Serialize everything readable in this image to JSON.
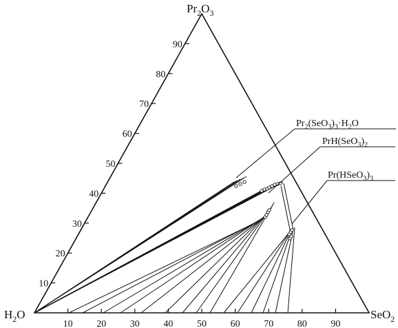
{
  "vertices": {
    "top": {
      "base": "Pr",
      "sub1": "2",
      "mid": "O",
      "sub2": "3"
    },
    "left": {
      "base": "H",
      "sub1": "2",
      "mid": "O"
    },
    "right": {
      "base": "SeO",
      "sub1": "2"
    }
  },
  "left_axis_ticks": [
    "10",
    "20",
    "30",
    "40",
    "50",
    "60",
    "70",
    "80",
    "90"
  ],
  "bottom_axis_ticks": [
    "10",
    "20",
    "30",
    "40",
    "50",
    "60",
    "70",
    "80",
    "90"
  ],
  "phases": [
    {
      "label_parts": [
        [
          "Pr",
          false
        ],
        [
          "2",
          true
        ],
        [
          "(SeO",
          false
        ],
        [
          "3",
          true
        ],
        [
          ")",
          false
        ],
        [
          "3",
          true
        ],
        [
          "·H",
          false
        ],
        [
          "2",
          true
        ],
        [
          "O",
          false
        ]
      ]
    },
    {
      "label_parts": [
        [
          "PrH(SeO",
          false
        ],
        [
          "3",
          true
        ],
        [
          ")",
          false
        ],
        [
          "2",
          true
        ]
      ]
    },
    {
      "label_parts": [
        [
          "Pr(HSeO",
          false
        ],
        [
          "3",
          true
        ],
        [
          ")",
          false
        ],
        [
          "3",
          true
        ]
      ]
    }
  ]
}
